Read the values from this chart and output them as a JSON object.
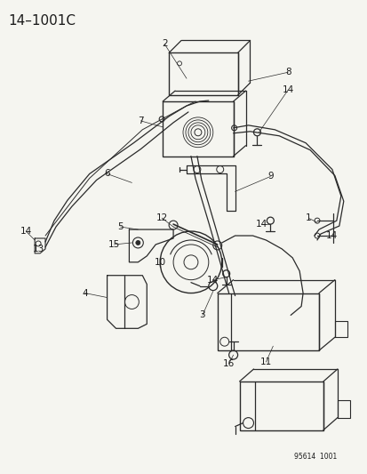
{
  "title": "14–1001C",
  "watermark": "95614  1001",
  "bg_color": "#f5f5f0",
  "line_color": "#2a2a2a",
  "label_color": "#1a1a1a",
  "title_fontsize": 11,
  "label_fontsize": 7.5,
  "fig_width": 4.14,
  "fig_height": 5.33,
  "dpi": 100
}
